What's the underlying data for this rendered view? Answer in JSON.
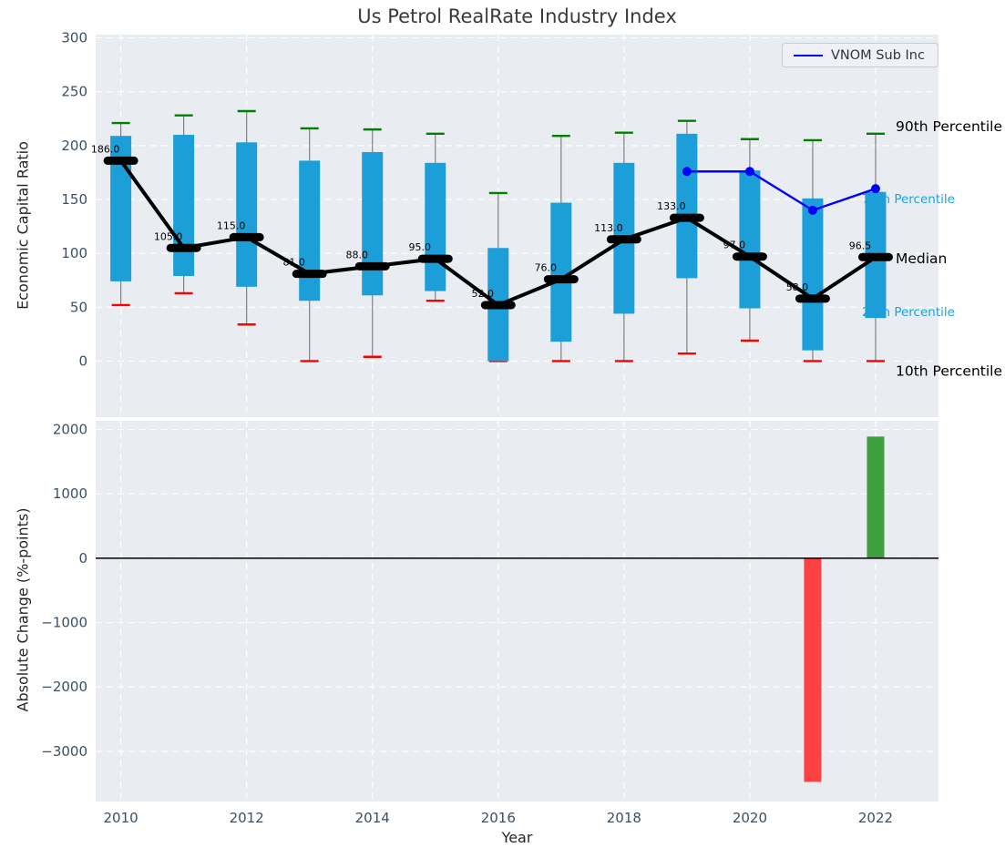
{
  "title": "Us Petrol RealRate Industry Index",
  "legend": {
    "label": "VNOM Sub Inc"
  },
  "colors": {
    "axes_bg": "#e9edf1",
    "grid": "#ffffff",
    "box": "#1c9ed8",
    "p90_cap": "#008000",
    "p10_cap": "#ff0000",
    "median": "#000000",
    "vnom": "#0000ff",
    "tick_label": "#3d4f63",
    "whisker": "#808080",
    "pos_bar": "#3da03d",
    "neg_bar": "#fb4141",
    "label_blue": "#1ba3dc",
    "zero_line": "#000000"
  },
  "chart_data": [
    {
      "type": "box-whisker-timeseries",
      "title": "Us Petrol RealRate Industry Index",
      "ylabel": "Economic Capital Ratio",
      "ylim": [
        -52,
        303
      ],
      "xlim": [
        2009.6,
        2023.0
      ],
      "yticks": [
        300,
        250,
        200,
        150,
        100,
        50,
        0
      ],
      "ytick_labels": [
        "300",
        "250",
        "200",
        "150",
        "100",
        "50",
        "0"
      ],
      "grid_years": [
        2010,
        2012,
        2014,
        2016,
        2018,
        2020,
        2022
      ],
      "years": [
        2010,
        2011,
        2012,
        2013,
        2014,
        2015,
        2016,
        2017,
        2018,
        2019,
        2020,
        2021,
        2022
      ],
      "median": [
        186,
        105,
        115,
        81,
        88,
        95,
        52,
        76,
        113,
        133,
        97,
        58,
        96.5
      ],
      "median_labels": [
        "186.0",
        "105.0",
        "115.0",
        "81.0",
        "88.0",
        "95.0",
        "52.0",
        "76.0",
        "113.0",
        "133.0",
        "97.0",
        "58.0",
        "96.5"
      ],
      "p25": [
        74,
        79,
        69,
        56,
        61,
        65,
        0,
        18,
        44,
        77,
        49,
        10,
        40
      ],
      "p75": [
        209,
        210,
        203,
        186,
        194,
        184,
        105,
        147,
        184,
        211,
        177,
        151,
        157
      ],
      "p10": [
        52,
        63,
        34,
        0,
        4,
        56,
        0,
        0,
        0,
        7,
        19,
        0,
        0
      ],
      "p90": [
        221,
        228,
        232,
        216,
        215,
        211,
        156,
        209,
        212,
        223,
        206,
        205,
        211
      ],
      "series": [
        {
          "name": "VNOM Sub Inc",
          "x": [
            2019,
            2020,
            2021,
            2022
          ],
          "values": [
            176,
            176,
            140,
            160
          ]
        }
      ],
      "right_labels": [
        {
          "text": "90th Percentile",
          "value": 218,
          "style": "black"
        },
        {
          "text": "75th Percentile",
          "value": 151,
          "style": "blue"
        },
        {
          "text": "Median",
          "value": 95.5,
          "style": "black"
        },
        {
          "text": "25th Percentile",
          "value": 46,
          "style": "blue"
        },
        {
          "text": "10th Percentile",
          "value": -9,
          "style": "black"
        }
      ],
      "legend_position": "upper right",
      "grid": true
    },
    {
      "type": "bar",
      "ylabel": "Absolute Change (%-points)",
      "xlabel": "Year",
      "ylim": [
        -3780,
        2135
      ],
      "xlim": [
        2009.6,
        2023.0
      ],
      "yticks": [
        2000,
        1000,
        0,
        -1000,
        -2000,
        -3000
      ],
      "ytick_labels": [
        "2000",
        "1000",
        "0",
        "−1000",
        "−2000",
        "−3000"
      ],
      "xticks": [
        2010,
        2012,
        2014,
        2016,
        2018,
        2020,
        2022
      ],
      "xtick_labels": [
        "2010",
        "2012",
        "2014",
        "2016",
        "2018",
        "2020",
        "2022"
      ],
      "bars": [
        {
          "year": 2021,
          "value": -3475,
          "color_key": "neg_bar"
        },
        {
          "year": 2022,
          "value": 1890,
          "color_key": "pos_bar"
        }
      ],
      "grid": true
    }
  ]
}
